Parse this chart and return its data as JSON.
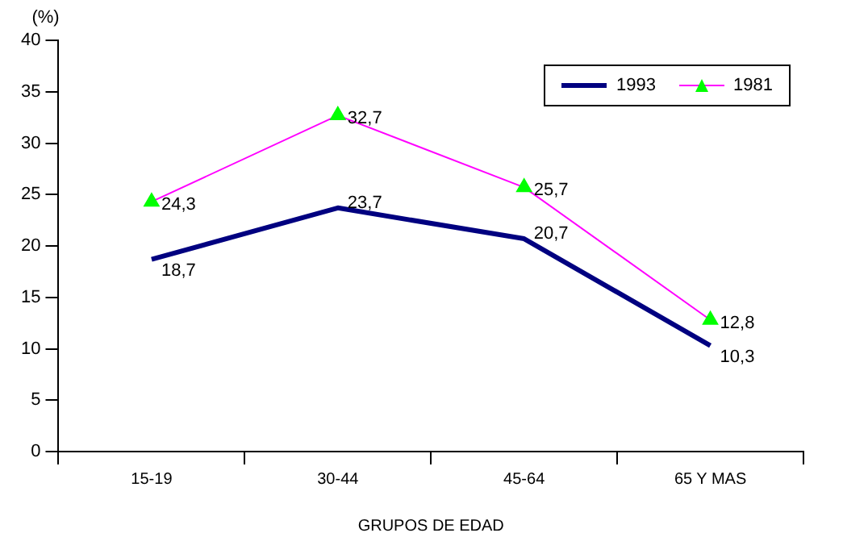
{
  "chart_data": {
    "type": "line",
    "ylabel": "(%)",
    "xlabel": "GRUPOS DE EDAD",
    "categories": [
      "15-19",
      "30-44",
      "45-64",
      "65 Y MAS"
    ],
    "series": [
      {
        "name": "1993",
        "color": "#000080",
        "values": [
          18.7,
          23.7,
          20.7,
          10.3
        ],
        "value_labels": [
          "18,7",
          "23,7",
          "20,7",
          "10,3"
        ],
        "marker": "none"
      },
      {
        "name": "1981",
        "color": "#ff00ff",
        "colors": [
          "#00ff00",
          "#00ff00",
          "#00ff00",
          "#00ff00"
        ],
        "values": [
          24.3,
          32.7,
          25.7,
          12.8
        ],
        "value_labels": [
          "24,3",
          "32,7",
          "25,7",
          "12,8"
        ],
        "marker": "triangle"
      }
    ],
    "ylim": [
      0,
      40
    ],
    "yticks": [
      0,
      5,
      10,
      15,
      20,
      25,
      30,
      35,
      40
    ],
    "grid": false,
    "legend": "top right"
  }
}
